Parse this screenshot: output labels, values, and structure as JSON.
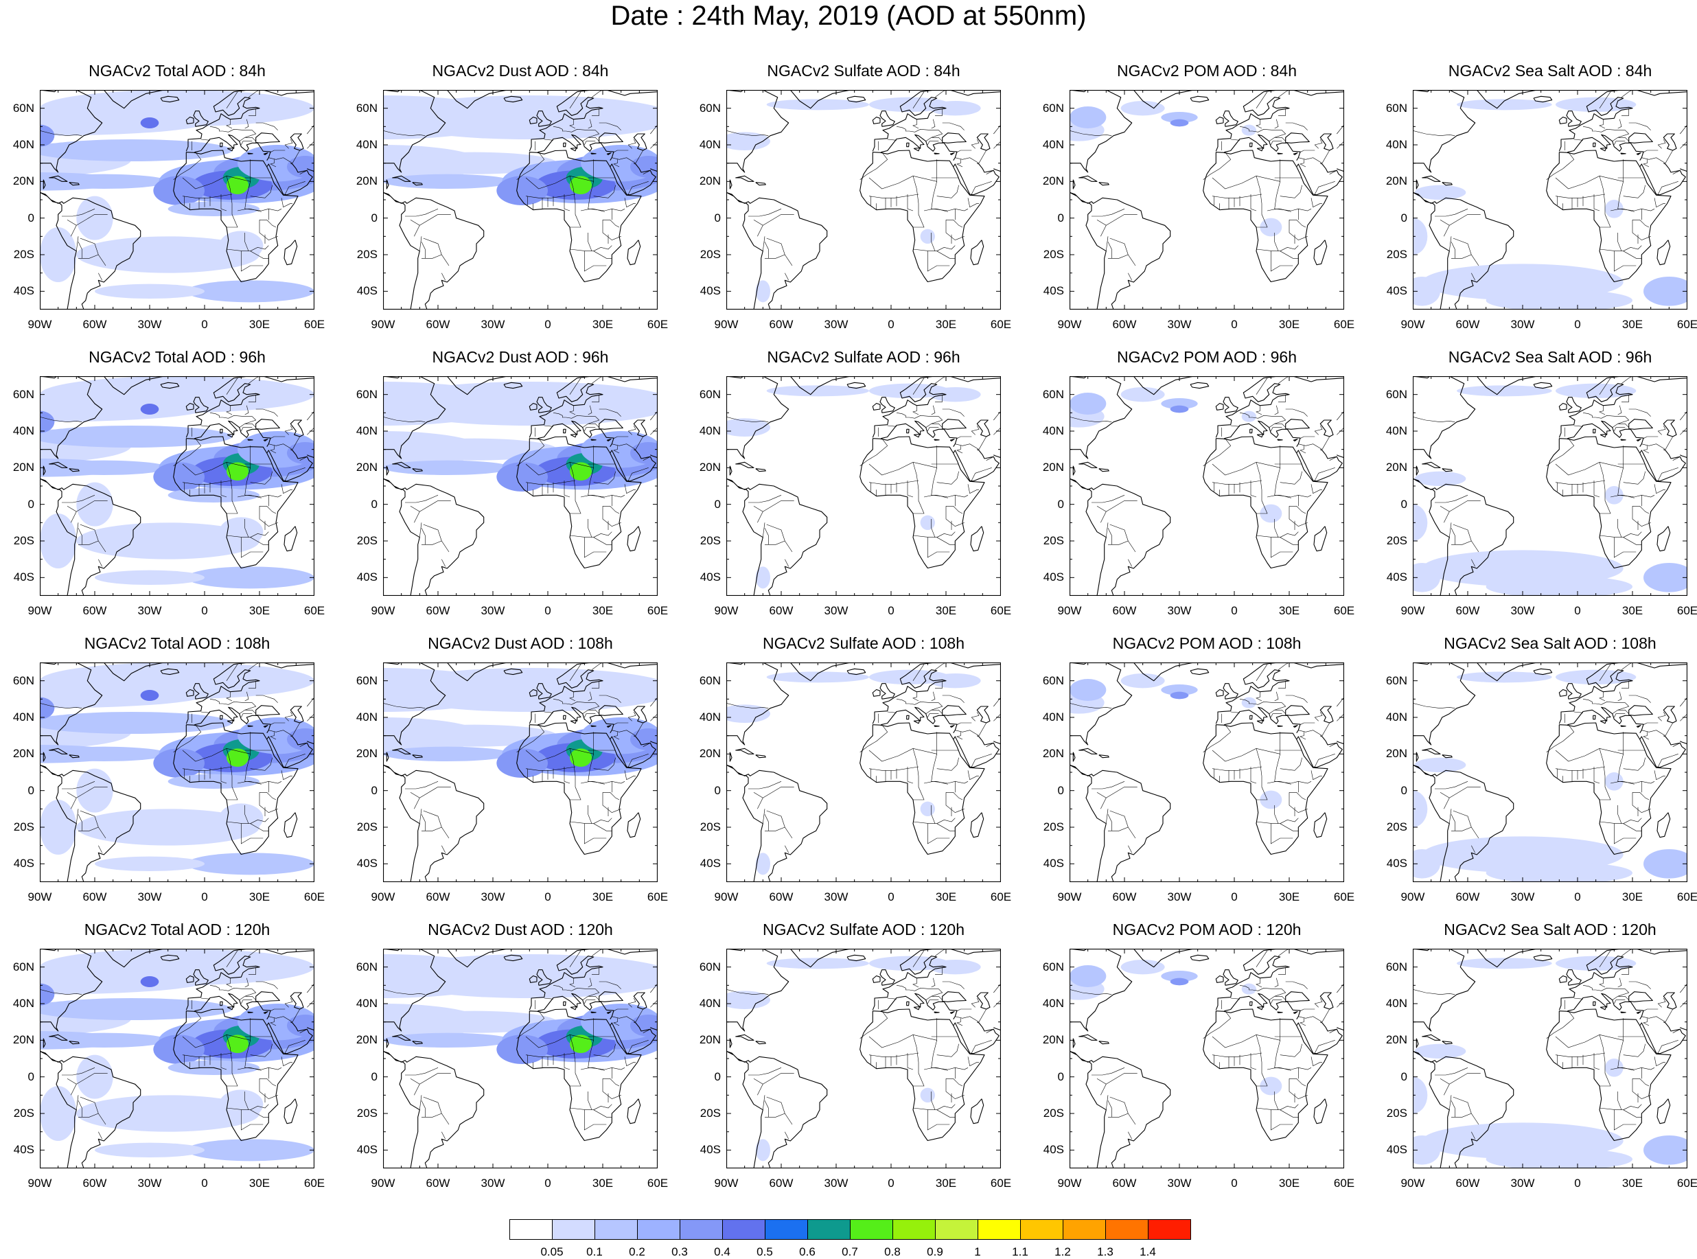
{
  "title": "Date : 24th May, 2019 (AOD at 550nm)",
  "panels": [
    {
      "title": "NGACv2 Total AOD : 84h",
      "species": "total",
      "hour": 84
    },
    {
      "title": "NGACv2 Dust AOD : 84h",
      "species": "dust",
      "hour": 84
    },
    {
      "title": "NGACv2 Sulfate AOD : 84h",
      "species": "sulfate",
      "hour": 84
    },
    {
      "title": "NGACv2 POM AOD : 84h",
      "species": "pom",
      "hour": 84
    },
    {
      "title": "NGACv2 Sea Salt AOD : 84h",
      "species": "seasalt",
      "hour": 84
    },
    {
      "title": "NGACv2 Total AOD : 96h",
      "species": "total",
      "hour": 96
    },
    {
      "title": "NGACv2 Dust AOD : 96h",
      "species": "dust",
      "hour": 96
    },
    {
      "title": "NGACv2 Sulfate AOD : 96h",
      "species": "sulfate",
      "hour": 96
    },
    {
      "title": "NGACv2 POM AOD : 96h",
      "species": "pom",
      "hour": 96
    },
    {
      "title": "NGACv2 Sea Salt AOD : 96h",
      "species": "seasalt",
      "hour": 96
    },
    {
      "title": "NGACv2 Total AOD : 108h",
      "species": "total",
      "hour": 108
    },
    {
      "title": "NGACv2 Dust AOD : 108h",
      "species": "dust",
      "hour": 108
    },
    {
      "title": "NGACv2 Sulfate AOD : 108h",
      "species": "sulfate",
      "hour": 108
    },
    {
      "title": "NGACv2 POM AOD : 108h",
      "species": "pom",
      "hour": 108
    },
    {
      "title": "NGACv2 Sea Salt AOD : 108h",
      "species": "seasalt",
      "hour": 108
    },
    {
      "title": "NGACv2 Total AOD : 120h",
      "species": "total",
      "hour": 120
    },
    {
      "title": "NGACv2 Dust AOD : 120h",
      "species": "dust",
      "hour": 120
    },
    {
      "title": "NGACv2 Sulfate AOD : 120h",
      "species": "sulfate",
      "hour": 120
    },
    {
      "title": "NGACv2 POM AOD : 120h",
      "species": "pom",
      "hour": 120
    },
    {
      "title": "NGACv2 Sea Salt  AOD : 120h",
      "species": "seasalt",
      "hour": 120
    }
  ],
  "axes": {
    "lon_range": [
      -90,
      60
    ],
    "lat_range": [
      -50,
      70
    ],
    "x_ticks": [
      {
        "value": -90,
        "label": "90W"
      },
      {
        "value": -60,
        "label": "60W"
      },
      {
        "value": -30,
        "label": "30W"
      },
      {
        "value": 0,
        "label": "0"
      },
      {
        "value": 30,
        "label": "30E"
      },
      {
        "value": 60,
        "label": "60E"
      }
    ],
    "y_ticks": [
      {
        "value": 60,
        "label": "60N"
      },
      {
        "value": 40,
        "label": "40N"
      },
      {
        "value": 20,
        "label": "20N"
      },
      {
        "value": 0,
        "label": "0"
      },
      {
        "value": -20,
        "label": "20S"
      },
      {
        "value": -40,
        "label": "40S"
      }
    ]
  },
  "colorbar": {
    "labels": [
      "0.05",
      "0.1",
      "0.2",
      "0.3",
      "0.4",
      "0.5",
      "0.6",
      "0.7",
      "0.8",
      "0.9",
      "1",
      "1.1",
      "1.2",
      "1.3",
      "1.4"
    ],
    "colors": [
      "#ffffff",
      "#d3dcff",
      "#b6c6ff",
      "#9db2ff",
      "#8498f7",
      "#6272ee",
      "#1b70f0",
      "#0e9a8e",
      "#55ee19",
      "#96f00b",
      "#c5f33a",
      "#ffff00",
      "#ffc600",
      "#ffa300",
      "#ff7400",
      "#ff1e00"
    ]
  }
}
